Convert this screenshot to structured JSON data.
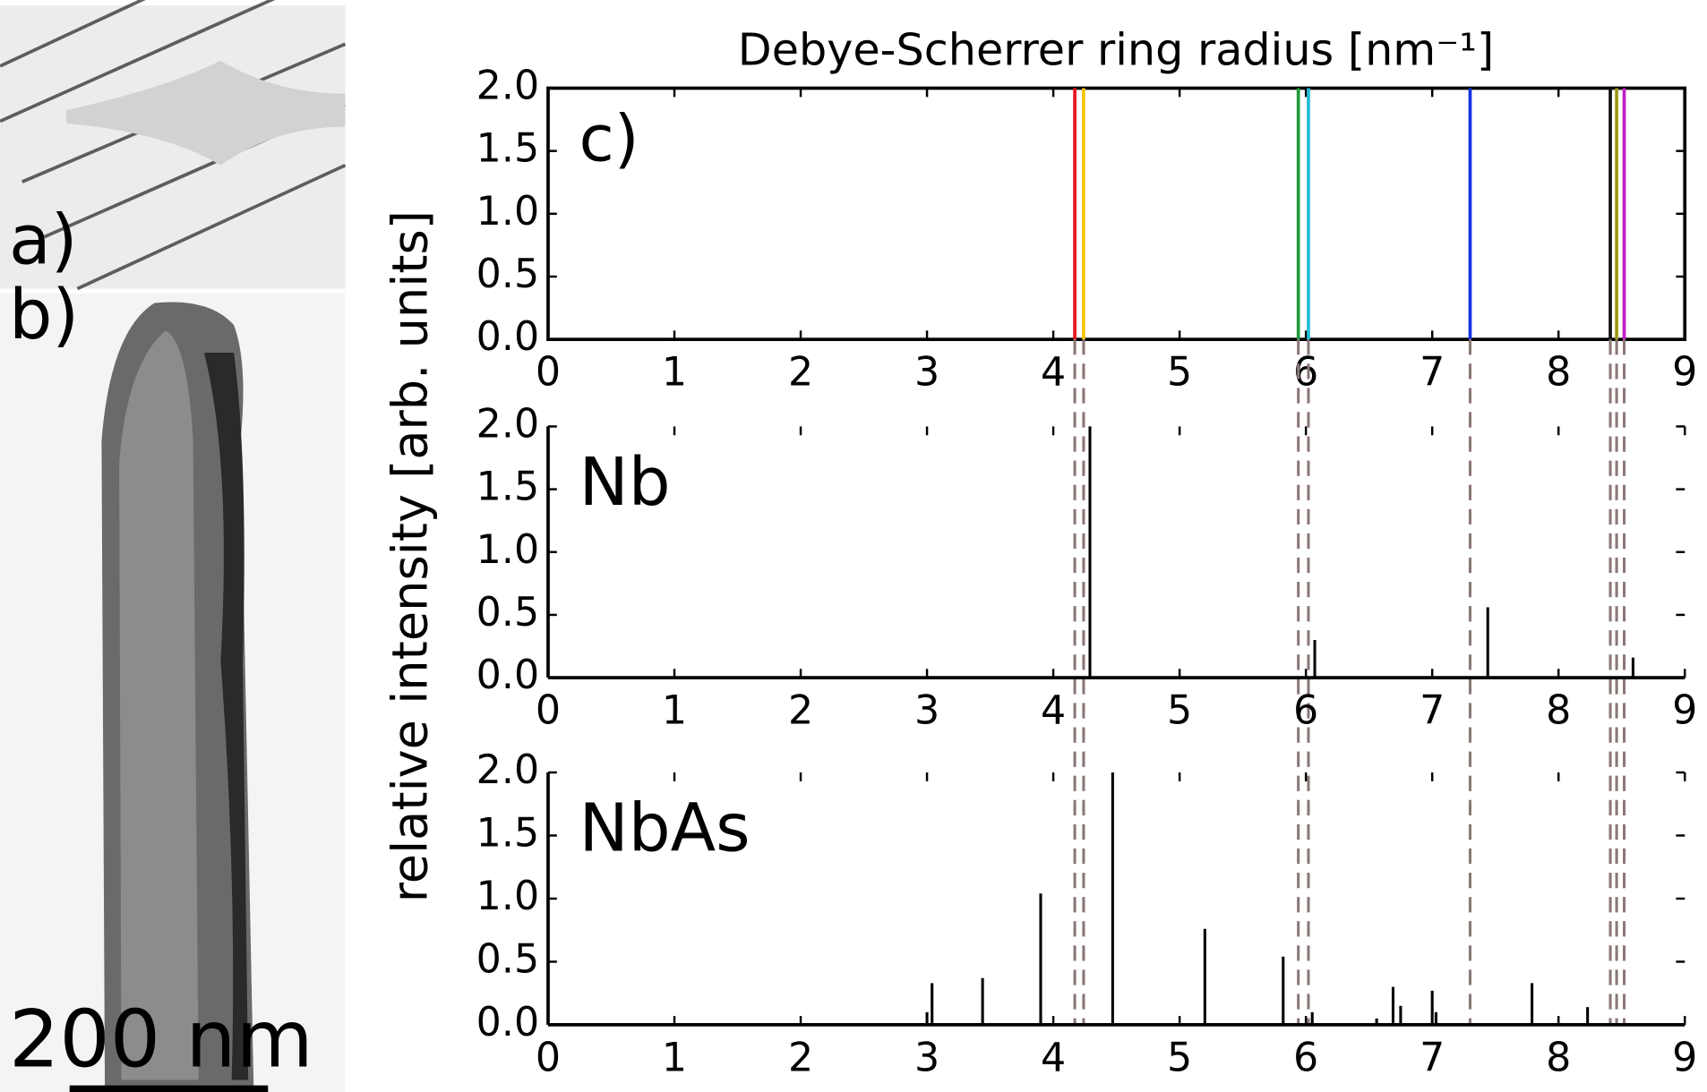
{
  "panel_labels": [
    "a)",
    "b)"
  ],
  "scale_bar": "200 nm",
  "chart_data": [
    {
      "type": "vlines",
      "title": "Debye-Scherrer ring radius [nm⁻¹]",
      "ylabel": "relative intensity [arb. units]",
      "label": "c)",
      "frame": "full",
      "x": [
        4.17,
        4.24,
        5.94,
        6.02,
        7.3,
        8.41,
        8.46,
        8.52
      ],
      "values": [
        2,
        2,
        2,
        2,
        2,
        2,
        2,
        2
      ],
      "colors": [
        "#e8141b",
        "#f5c400",
        "#1f9a3c",
        "#21bcd6",
        "#1432e0",
        "#111111",
        "#9a9a10",
        "#c21ec2"
      ],
      "xlim": [
        0,
        9
      ],
      "ylim": [
        0,
        2
      ],
      "xticks": [
        0,
        1,
        2,
        3,
        4,
        5,
        6,
        7,
        8,
        9
      ],
      "yticks": [
        {
          "value": 0,
          "label": "0.0"
        },
        {
          "value": 0.5,
          "label": "0.5"
        },
        {
          "value": 1,
          "label": "1.0"
        },
        {
          "value": 1.5,
          "label": "1.5"
        },
        {
          "value": 2,
          "label": "2.0"
        }
      ]
    },
    {
      "type": "stem",
      "label": "Nb",
      "frame": "open",
      "color": "#000000",
      "x": [
        4.29,
        6.07,
        7.44,
        8.59
      ],
      "values": [
        2,
        0.3,
        0.56,
        0.16
      ],
      "xlim": [
        0,
        9
      ],
      "ylim": [
        0,
        2
      ],
      "xticks": [
        0,
        1,
        2,
        3,
        4,
        5,
        6,
        7,
        8,
        9
      ],
      "yticks": [
        {
          "value": 0,
          "label": "0.0"
        },
        {
          "value": 0.5,
          "label": "0.5"
        },
        {
          "value": 1,
          "label": "1.0"
        },
        {
          "value": 1.5,
          "label": "1.5"
        },
        {
          "value": 2,
          "label": "2.0"
        }
      ]
    },
    {
      "type": "stem",
      "label": "NbAs",
      "frame": "open",
      "color": "#000000",
      "x": [
        3.0,
        3.04,
        3.44,
        3.9,
        4.47,
        5.2,
        5.82,
        6.05,
        6.56,
        6.69,
        6.75,
        7.0,
        7.03,
        7.79,
        8.23
      ],
      "values": [
        0.1,
        0.33,
        0.37,
        1.04,
        2,
        0.76,
        0.54,
        0.1,
        0.05,
        0.3,
        0.15,
        0.27,
        0.1,
        0.33,
        0.14
      ],
      "xlim": [
        0,
        9
      ],
      "ylim": [
        0,
        2
      ],
      "xticks": [
        0,
        1,
        2,
        3,
        4,
        5,
        6,
        7,
        8,
        9
      ],
      "yticks": [
        {
          "value": 0,
          "label": "0.0"
        },
        {
          "value": 0.5,
          "label": "0.5"
        },
        {
          "value": 1,
          "label": "1.0"
        },
        {
          "value": 1.5,
          "label": "1.5"
        },
        {
          "value": 2,
          "label": "2.0"
        }
      ]
    }
  ]
}
